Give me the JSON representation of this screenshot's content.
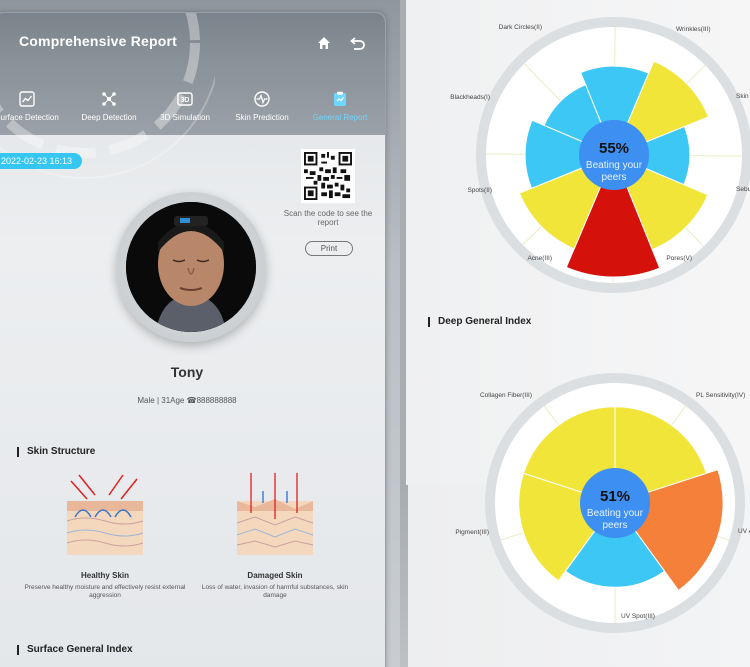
{
  "header": {
    "title": "Comprehensive Report",
    "home_icon": "home-icon",
    "back_icon": "back-icon"
  },
  "nav": {
    "items": [
      {
        "label": "Surface Detection",
        "icon": "chart-icon"
      },
      {
        "label": "Deep Detection",
        "icon": "molecule-icon"
      },
      {
        "label": "3D Simulation",
        "icon": "3d-icon"
      },
      {
        "label": "Skin Prediction",
        "icon": "pulse-icon"
      },
      {
        "label": "General Report",
        "icon": "report-icon",
        "active": true
      }
    ]
  },
  "report": {
    "date": "2022-02-23 16:13",
    "qr_note": "Scan the code to see the report",
    "print_label": "Print"
  },
  "user": {
    "name": "Tony",
    "info_prefix": "Male | 31Age",
    "phone": "888888888"
  },
  "skin_structure": {
    "title": "Skin Structure",
    "healthy": {
      "name": "Healthy Skin",
      "desc": "Preserve healthy moisture and effectively resist external aggression"
    },
    "damaged": {
      "name": "Damaged Skin",
      "desc": "Loss of water, invasion of harmful substances, skin damage"
    }
  },
  "surface_title": "Surface General Index",
  "deep_title": "Deep General Index",
  "colors": {
    "accent": "#35c7f2",
    "yellow": "#f2e53a",
    "orange": "#f5803a",
    "red": "#d5110c",
    "cyan": "#3cc7f4",
    "center": "#3d8ff1"
  },
  "surface_chart": {
    "center_value": "55%",
    "center_text": "Beating your peers",
    "labels": [
      "Dark Circles(II)",
      "Wrinkles(III)",
      "Skin",
      "Sebu",
      "Pores(V)",
      "Acne(III)",
      "Spots(II)",
      "Blackheads(I)"
    ],
    "levels": [
      2,
      3,
      1,
      3,
      5,
      3,
      2,
      1
    ]
  },
  "deep_chart": {
    "center_value": "51%",
    "center_text": "Beating your peers",
    "labels": [
      "Collagen Fiber(III)",
      "PL Sensitivity(IV)",
      "UV A",
      "UV Spot(III)",
      "Pigment(III)"
    ],
    "levels": [
      3,
      4,
      2,
      3,
      3
    ]
  }
}
